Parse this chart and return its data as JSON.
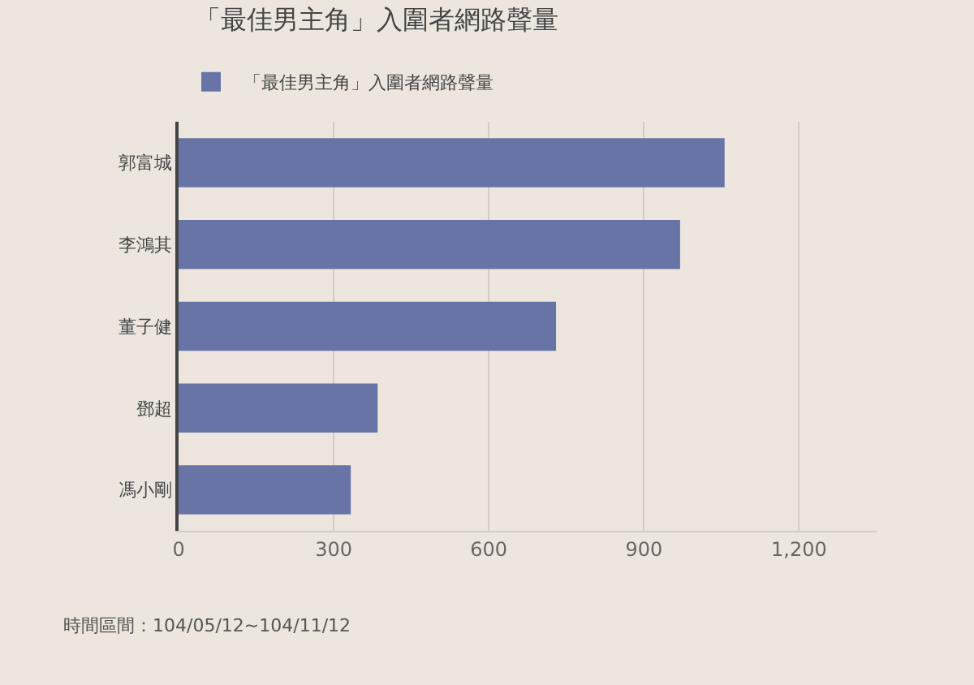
{
  "chart_data": {
    "type": "bar",
    "orientation": "horizontal",
    "title": "「最佳男主角」入圍者網路聲量",
    "categories": [
      "郭富城",
      "李鴻其",
      "董子健",
      "鄧超",
      "馮小剛"
    ],
    "series": [
      {
        "name": "「最佳男主角」入圍者網路聲量",
        "color": "#6874a6",
        "values": [
          1056,
          970,
          730,
          385,
          333
        ]
      }
    ],
    "xlim": [
      0,
      1350
    ],
    "xticks": [
      0,
      300,
      600,
      900,
      {
        "value": 1200,
        "label": "1,200"
      }
    ],
    "grid": "x",
    "legend": "top left",
    "annotations": [
      "時間區間：104/05/12~104/11/12"
    ]
  }
}
